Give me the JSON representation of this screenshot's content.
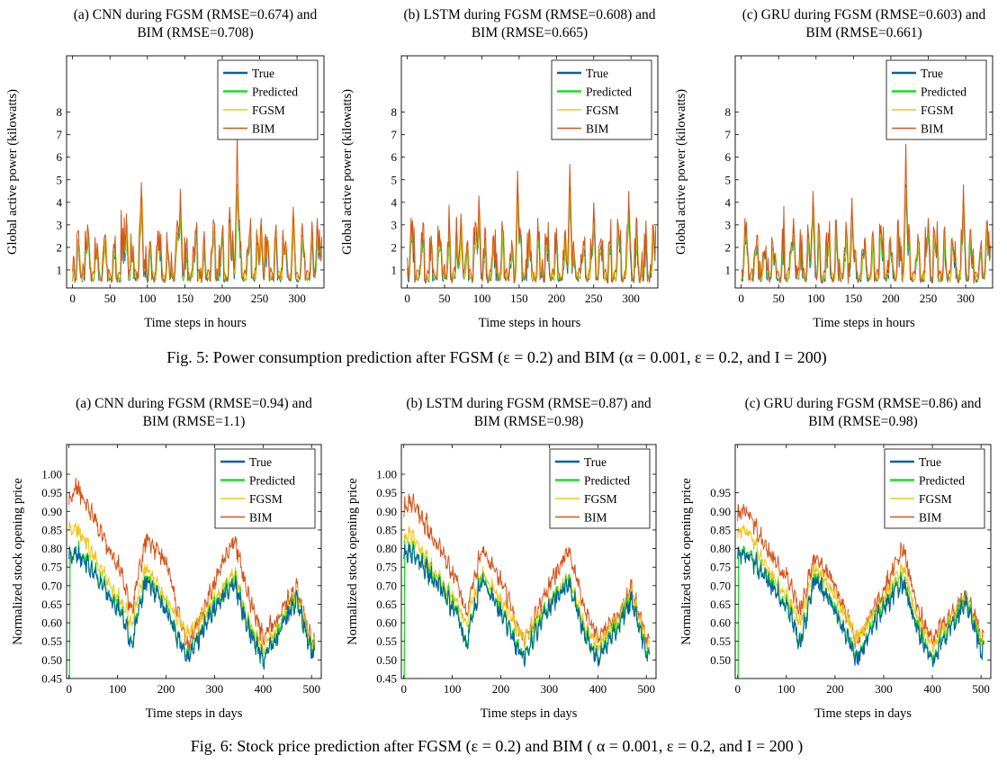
{
  "colors": {
    "True": "#0a5fa8",
    "Predicted": "#19e01e",
    "FGSM": "#f2c318",
    "BIM": "#d3561c"
  },
  "figure5": {
    "caption": "Fig. 5: Power consumption prediction after FGSM (ε = 0.2) and BIM (α = 0.001,  ε = 0.2, and I = 200)"
  },
  "figure6": {
    "caption": "Fig. 6: Stock price prediction after FGSM (ε = 0.2) and BIM ( α = 0.001,  ε = 0.2, and I = 200 )"
  },
  "chart_data": [
    {
      "type": "line",
      "title": [
        "(a) CNN during FGSM (RMSE=0.674) and",
        "BIM (RMSE=0.708)"
      ],
      "xlabel": "Time steps in hours",
      "ylabel": "Global active power (kilowatts)",
      "xlim": [
        -8,
        336
      ],
      "ylim": [
        0.2,
        10.5
      ],
      "xticks": [
        0,
        50,
        100,
        150,
        200,
        250,
        300
      ],
      "yticks": [
        1,
        2,
        3,
        4,
        5,
        6,
        7,
        8
      ],
      "legend": [
        "True",
        "Predicted",
        "FGSM",
        "BIM"
      ],
      "legend_position": "top-right",
      "x_count": 334,
      "peaks": [
        {
          "x": 21,
          "y": 2.7
        },
        {
          "x": 72,
          "y": 3.5
        },
        {
          "x": 92,
          "y": 4.9
        },
        {
          "x": 144,
          "y": 4.6
        },
        {
          "x": 220,
          "y": 7.0
        },
        {
          "x": 252,
          "y": 3.3
        },
        {
          "x": 295,
          "y": 3.8
        },
        {
          "x": 327,
          "y": 3.3
        }
      ]
    },
    {
      "type": "line",
      "title": [
        "(b) LSTM during FGSM (RMSE=0.608) and",
        "BIM (RMSE=0.665)"
      ],
      "xlabel": "Time steps in hours",
      "ylabel": "Global active power (kilowatts)",
      "xlim": [
        -8,
        336
      ],
      "ylim": [
        0.2,
        10.5
      ],
      "xticks": [
        0,
        50,
        100,
        150,
        200,
        250,
        300
      ],
      "yticks": [
        1,
        2,
        3,
        4,
        5,
        6,
        7,
        8
      ],
      "legend": [
        "True",
        "Predicted",
        "FGSM",
        "BIM"
      ],
      "legend_position": "top-right",
      "x_count": 334,
      "peaks": [
        {
          "x": 5,
          "y": 3.3
        },
        {
          "x": 72,
          "y": 3.5
        },
        {
          "x": 96,
          "y": 4.3
        },
        {
          "x": 148,
          "y": 5.4
        },
        {
          "x": 218,
          "y": 5.7
        },
        {
          "x": 250,
          "y": 4.0
        },
        {
          "x": 297,
          "y": 4.5
        },
        {
          "x": 330,
          "y": 3.0
        }
      ]
    },
    {
      "type": "line",
      "title": [
        "(c) GRU during FGSM (RMSE=0.603) and",
        "BIM (RMSE=0.661)"
      ],
      "xlabel": "Time steps in hours",
      "ylabel": "Global active power (kilowatts)",
      "xlim": [
        -8,
        336
      ],
      "ylim": [
        0.2,
        10.5
      ],
      "xticks": [
        0,
        50,
        100,
        150,
        200,
        250,
        300
      ],
      "yticks": [
        1,
        2,
        3,
        4,
        5,
        6,
        7,
        8
      ],
      "legend": [
        "True",
        "Predicted",
        "FGSM",
        "BIM"
      ],
      "legend_position": "top-right",
      "x_count": 334,
      "peaks": [
        {
          "x": 5,
          "y": 3.3
        },
        {
          "x": 70,
          "y": 3.3
        },
        {
          "x": 96,
          "y": 4.5
        },
        {
          "x": 148,
          "y": 4.2
        },
        {
          "x": 220,
          "y": 6.6
        },
        {
          "x": 250,
          "y": 3.3
        },
        {
          "x": 297,
          "y": 4.8
        },
        {
          "x": 328,
          "y": 3.1
        }
      ]
    },
    {
      "type": "line",
      "title": [
        "(a) CNN during FGSM (RMSE=0.94) and",
        "BIM (RMSE=1.1)"
      ],
      "xlabel": "Time steps in days",
      "ylabel": "Normalized stock opening price",
      "xlim": [
        -5,
        520
      ],
      "ylim": [
        0.45,
        1.08
      ],
      "xticks": [
        0,
        100,
        200,
        300,
        400,
        500
      ],
      "yticks": [
        0.45,
        0.5,
        0.55,
        0.6,
        0.65,
        0.7,
        0.75,
        0.8,
        0.85,
        0.9,
        0.95,
        1.0
      ],
      "legend": [
        "True",
        "Predicted",
        "FGSM",
        "BIM"
      ],
      "legend_position": "top-right",
      "x_count": 507,
      "true_anchors": [
        [
          0,
          0.78
        ],
        [
          15,
          0.79
        ],
        [
          60,
          0.72
        ],
        [
          110,
          0.62
        ],
        [
          128,
          0.54
        ],
        [
          160,
          0.72
        ],
        [
          200,
          0.63
        ],
        [
          245,
          0.5
        ],
        [
          290,
          0.62
        ],
        [
          340,
          0.71
        ],
        [
          370,
          0.58
        ],
        [
          400,
          0.5
        ],
        [
          445,
          0.6
        ],
        [
          470,
          0.66
        ],
        [
          500,
          0.52
        ],
        [
          507,
          0.52
        ]
      ],
      "fgsm_anchors": [
        [
          0,
          0.85
        ],
        [
          15,
          0.86
        ],
        [
          60,
          0.76
        ],
        [
          110,
          0.65
        ],
        [
          128,
          0.6
        ],
        [
          160,
          0.75
        ],
        [
          200,
          0.66
        ],
        [
          245,
          0.57
        ],
        [
          290,
          0.64
        ],
        [
          340,
          0.74
        ],
        [
          370,
          0.6
        ],
        [
          400,
          0.53
        ],
        [
          445,
          0.62
        ],
        [
          470,
          0.68
        ],
        [
          500,
          0.54
        ],
        [
          507,
          0.54
        ]
      ],
      "bim_anchors": [
        [
          0,
          0.93
        ],
        [
          15,
          0.97
        ],
        [
          60,
          0.86
        ],
        [
          110,
          0.73
        ],
        [
          128,
          0.63
        ],
        [
          160,
          0.83
        ],
        [
          200,
          0.76
        ],
        [
          245,
          0.53
        ],
        [
          290,
          0.68
        ],
        [
          340,
          0.83
        ],
        [
          370,
          0.67
        ],
        [
          400,
          0.56
        ],
        [
          445,
          0.64
        ],
        [
          470,
          0.69
        ],
        [
          500,
          0.55
        ],
        [
          507,
          0.55
        ]
      ]
    },
    {
      "type": "line",
      "title": [
        "(b) LSTM during FGSM (RMSE=0.87) and",
        "BIM (RMSE=0.98)"
      ],
      "xlabel": "Time steps in days",
      "ylabel": "Normalized stock opening price",
      "xlim": [
        -5,
        520
      ],
      "ylim": [
        0.45,
        1.08
      ],
      "xticks": [
        0,
        100,
        200,
        300,
        400,
        500
      ],
      "yticks": [
        0.45,
        0.5,
        0.55,
        0.6,
        0.65,
        0.7,
        0.75,
        0.8,
        0.85,
        0.9,
        0.95,
        1.0
      ],
      "legend": [
        "True",
        "Predicted",
        "FGSM",
        "BIM"
      ],
      "legend_position": "top-right",
      "x_count": 507,
      "true_anchors": [
        [
          0,
          0.78
        ],
        [
          15,
          0.79
        ],
        [
          60,
          0.72
        ],
        [
          110,
          0.62
        ],
        [
          128,
          0.54
        ],
        [
          160,
          0.72
        ],
        [
          200,
          0.63
        ],
        [
          245,
          0.5
        ],
        [
          290,
          0.62
        ],
        [
          340,
          0.71
        ],
        [
          370,
          0.58
        ],
        [
          400,
          0.5
        ],
        [
          445,
          0.6
        ],
        [
          470,
          0.66
        ],
        [
          500,
          0.52
        ],
        [
          507,
          0.52
        ]
      ],
      "fgsm_anchors": [
        [
          0,
          0.82
        ],
        [
          15,
          0.84
        ],
        [
          60,
          0.74
        ],
        [
          110,
          0.65
        ],
        [
          128,
          0.6
        ],
        [
          160,
          0.74
        ],
        [
          200,
          0.66
        ],
        [
          245,
          0.56
        ],
        [
          290,
          0.63
        ],
        [
          340,
          0.73
        ],
        [
          370,
          0.6
        ],
        [
          400,
          0.54
        ],
        [
          445,
          0.62
        ],
        [
          470,
          0.68
        ],
        [
          500,
          0.55
        ],
        [
          507,
          0.55
        ]
      ],
      "bim_anchors": [
        [
          0,
          0.9
        ],
        [
          15,
          0.93
        ],
        [
          60,
          0.83
        ],
        [
          110,
          0.71
        ],
        [
          128,
          0.62
        ],
        [
          160,
          0.8
        ],
        [
          200,
          0.72
        ],
        [
          245,
          0.55
        ],
        [
          290,
          0.67
        ],
        [
          340,
          0.8
        ],
        [
          370,
          0.65
        ],
        [
          400,
          0.56
        ],
        [
          445,
          0.63
        ],
        [
          470,
          0.69
        ],
        [
          500,
          0.56
        ],
        [
          507,
          0.56
        ]
      ]
    },
    {
      "type": "line",
      "title": [
        "(c) GRU during FGSM (RMSE=0.86) and",
        "BIM (RMSE=0.98)"
      ],
      "xlabel": "Time steps in days",
      "ylabel": "Normalized stock opening price",
      "xlim": [
        -5,
        520
      ],
      "ylim": [
        0.45,
        1.08
      ],
      "xticks": [
        0,
        100,
        200,
        300,
        400,
        500
      ],
      "yticks": [
        0.5,
        0.55,
        0.6,
        0.65,
        0.7,
        0.75,
        0.8,
        0.85,
        0.9,
        0.95
      ],
      "legend": [
        "True",
        "Predicted",
        "FGSM",
        "BIM"
      ],
      "legend_position": "top-right",
      "x_count": 507,
      "true_anchors": [
        [
          0,
          0.78
        ],
        [
          15,
          0.79
        ],
        [
          60,
          0.72
        ],
        [
          110,
          0.62
        ],
        [
          128,
          0.54
        ],
        [
          160,
          0.72
        ],
        [
          200,
          0.63
        ],
        [
          245,
          0.5
        ],
        [
          290,
          0.62
        ],
        [
          340,
          0.71
        ],
        [
          370,
          0.58
        ],
        [
          400,
          0.5
        ],
        [
          445,
          0.6
        ],
        [
          470,
          0.66
        ],
        [
          500,
          0.52
        ],
        [
          507,
          0.52
        ]
      ],
      "fgsm_anchors": [
        [
          0,
          0.84
        ],
        [
          15,
          0.86
        ],
        [
          60,
          0.75
        ],
        [
          110,
          0.65
        ],
        [
          128,
          0.6
        ],
        [
          160,
          0.75
        ],
        [
          200,
          0.67
        ],
        [
          245,
          0.56
        ],
        [
          290,
          0.64
        ],
        [
          340,
          0.75
        ],
        [
          370,
          0.61
        ],
        [
          400,
          0.54
        ],
        [
          445,
          0.62
        ],
        [
          470,
          0.67
        ],
        [
          500,
          0.55
        ],
        [
          507,
          0.55
        ]
      ],
      "bim_anchors": [
        [
          0,
          0.89
        ],
        [
          15,
          0.91
        ],
        [
          60,
          0.8
        ],
        [
          110,
          0.7
        ],
        [
          128,
          0.63
        ],
        [
          160,
          0.78
        ],
        [
          200,
          0.7
        ],
        [
          245,
          0.55
        ],
        [
          290,
          0.66
        ],
        [
          340,
          0.8
        ],
        [
          370,
          0.64
        ],
        [
          400,
          0.56
        ],
        [
          445,
          0.63
        ],
        [
          470,
          0.68
        ],
        [
          500,
          0.56
        ],
        [
          507,
          0.56
        ]
      ]
    }
  ]
}
